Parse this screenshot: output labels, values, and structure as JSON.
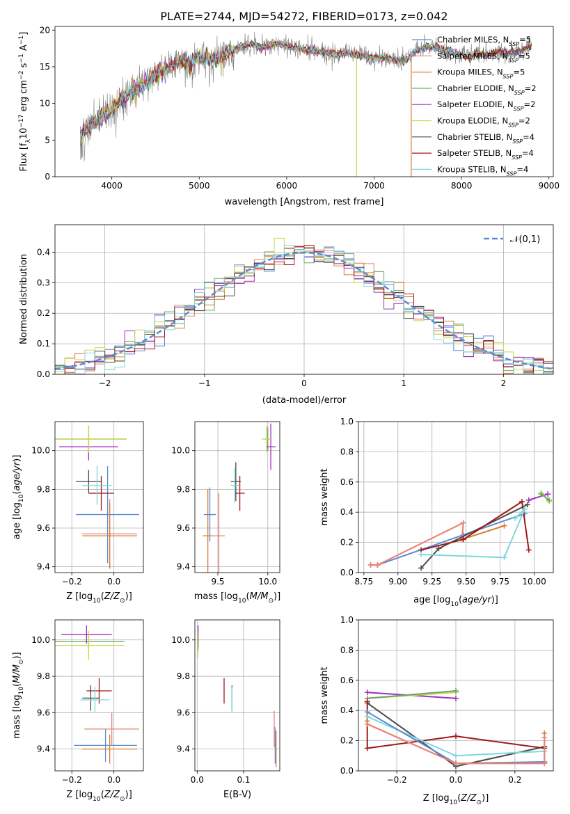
{
  "figure_title": "PLATE=2744, MJD=54272, FIBERID=0173, z=0.042",
  "colors": {
    "Chabrier MILES": "#5b8bd6",
    "Salpeter MILES": "#e8837a",
    "Kroupa MILES": "#d97b30",
    "Chabrier ELODIE": "#6aa36a",
    "Salpeter ELODIE": "#a02fc2",
    "Kroupa ELODIE": "#c8d94a",
    "Chabrier STELIB": "#4a4a4a",
    "Salpeter STELIB": "#a01818",
    "Kroupa STELIB": "#7fd7dc"
  },
  "chart_data": [
    {
      "id": "spectrum",
      "type": "line",
      "title": "PLATE=2744, MJD=54272, FIBERID=0173, z=0.042",
      "xlabel": "wavelength [Angstrom, rest frame]",
      "ylabel": "Flux [f_λ 10^-17 erg cm^-2 s^-1 A^-1]",
      "xlim": [
        3350,
        9050
      ],
      "ylim": [
        0,
        20.5
      ],
      "xticks": [
        4000,
        5000,
        6000,
        7000,
        8000,
        9000
      ],
      "yticks": [
        0,
        5,
        10,
        15,
        20
      ],
      "grid": false,
      "legend_position": "right",
      "data_envelope": {
        "x": [
          3640,
          3700,
          3800,
          3900,
          4000,
          4100,
          4200,
          4300,
          4400,
          4500,
          4600,
          4700,
          4800,
          4900,
          5000,
          5100,
          5200,
          5300,
          5400,
          5500,
          5600,
          5700,
          5800,
          5900,
          6000,
          6100,
          6200,
          6300,
          6400,
          6500,
          6600,
          6700,
          6800,
          6900,
          7000,
          7100,
          7200,
          7300,
          7400,
          7500,
          7600,
          7700,
          7800,
          7900,
          8000,
          8100,
          8200,
          8300,
          8400,
          8500,
          8600,
          8700,
          8800
        ],
        "y": [
          5.5,
          6.5,
          7.5,
          8.2,
          9.2,
          10.3,
          11.4,
          12.2,
          12.8,
          13.6,
          14.5,
          15.2,
          15.8,
          15.5,
          16.3,
          16.2,
          16.0,
          16.8,
          17.2,
          17.8,
          18.1,
          17.6,
          17.9,
          18.2,
          17.8,
          17.6,
          17.3,
          17.2,
          17.0,
          16.8,
          16.8,
          16.9,
          16.6,
          16.3,
          16.2,
          16.3,
          16.0,
          15.8,
          16.3,
          17.4,
          17.6,
          17.7,
          17.2,
          17.0,
          16.6,
          16.3,
          16.8,
          16.6,
          17.1,
          16.8,
          17.0,
          17.3,
          18.0
        ]
      },
      "series": [
        {
          "name": "Chabrier MILES, N_SSP=5",
          "n_ssp": "5"
        },
        {
          "name": "Salpeter MILES, N_SSP=5",
          "n_ssp": "5"
        },
        {
          "name": "Kroupa MILES, N_SSP=5",
          "n_ssp": "5"
        },
        {
          "name": "Chabrier ELODIE, N_SSP=2",
          "n_ssp": "2"
        },
        {
          "name": "Salpeter ELODIE, N_SSP=2",
          "n_ssp": "2"
        },
        {
          "name": "Kroupa ELODIE, N_SSP=2",
          "n_ssp": "2"
        },
        {
          "name": "Chabrier STELIB, N_SSP=4",
          "n_ssp": "4"
        },
        {
          "name": "Salpeter STELIB, N_SSP=4",
          "n_ssp": "4"
        },
        {
          "name": "Kroupa STELIB, N_SSP=4",
          "n_ssp": "4"
        }
      ]
    },
    {
      "id": "residuals",
      "type": "line",
      "xlabel": "(data-model)/error",
      "ylabel": "Normed distribution",
      "xlim": [
        -2.5,
        2.5
      ],
      "ylim": [
        0,
        0.49
      ],
      "xticks": [
        -2,
        -1,
        0,
        1,
        2
      ],
      "yticks": [
        0.0,
        0.1,
        0.2,
        0.3,
        0.4
      ],
      "grid": true,
      "legend_position": "top-right",
      "legend_label": "𝒩(0,1)",
      "bin_width": 0.1,
      "bin_start": -2.5
    },
    {
      "id": "z_age",
      "type": "scatter",
      "xlabel": "Z [log10(Z/Z☉)]",
      "ylabel": "age [log10(age/yr)]",
      "xlim": [
        -0.28,
        0.14
      ],
      "ylim": [
        9.37,
        10.15
      ],
      "xticks": [
        -0.2,
        0.0
      ],
      "yticks": [
        9.4,
        9.6,
        9.8,
        10.0
      ],
      "grid": true,
      "points": [
        {
          "model": "Chabrier MILES",
          "x": -0.03,
          "y": 9.67,
          "xerr": 0.15,
          "yerr": 0.25
        },
        {
          "model": "Salpeter MILES",
          "x": -0.02,
          "y": 9.57,
          "xerr": 0.13,
          "yerr": 0.18
        },
        {
          "model": "Kroupa MILES",
          "x": -0.02,
          "y": 9.56,
          "xerr": 0.13,
          "yerr": 0.17
        },
        {
          "model": "Chabrier ELODIE",
          "x": -0.12,
          "y": 10.06,
          "xerr": 0.18,
          "yerr": 0.07
        },
        {
          "model": "Salpeter ELODIE",
          "x": -0.12,
          "y": 10.02,
          "xerr": 0.14,
          "yerr": 0.07
        },
        {
          "model": "Kroupa ELODIE",
          "x": -0.12,
          "y": 10.06,
          "xerr": 0.18,
          "yerr": 0.07
        },
        {
          "model": "Chabrier STELIB",
          "x": -0.12,
          "y": 9.84,
          "xerr": 0.06,
          "yerr": 0.06
        },
        {
          "model": "Salpeter STELIB",
          "x": -0.06,
          "y": 9.78,
          "xerr": 0.06,
          "yerr": 0.09
        },
        {
          "model": "Kroupa STELIB",
          "x": -0.08,
          "y": 9.82,
          "xerr": 0.07,
          "yerr": 0.1
        }
      ]
    },
    {
      "id": "mass_age",
      "type": "scatter",
      "xlabel": "mass [log10(M/M☉)]",
      "ylabel": "",
      "xlim": [
        9.27,
        10.12
      ],
      "ylim": [
        9.37,
        10.15
      ],
      "xticks": [
        9.5,
        10.0
      ],
      "yticks": [
        9.4,
        9.6,
        9.8,
        10.0
      ],
      "grid": true,
      "points": [
        {
          "model": "Chabrier MILES",
          "x": 9.42,
          "y": 9.67,
          "xerr": 0.06,
          "yerr": 0.14
        },
        {
          "model": "Salpeter MILES",
          "x": 9.51,
          "y": 9.56,
          "xerr": 0.06,
          "yerr": 0.22
        },
        {
          "model": "Kroupa MILES",
          "x": 9.4,
          "y": 9.56,
          "xerr": 0.05,
          "yerr": 0.24
        },
        {
          "model": "Chabrier ELODIE",
          "x": 10.0,
          "y": 10.06,
          "xerr": 0.04,
          "yerr": 0.06
        },
        {
          "model": "Salpeter ELODIE",
          "x": 10.03,
          "y": 10.02,
          "xerr": 0.05,
          "yerr": 0.12
        },
        {
          "model": "Kroupa ELODIE",
          "x": 9.99,
          "y": 10.06,
          "xerr": 0.05,
          "yerr": 0.07
        },
        {
          "model": "Chabrier STELIB",
          "x": 9.68,
          "y": 9.84,
          "xerr": 0.05,
          "yerr": 0.1
        },
        {
          "model": "Salpeter STELIB",
          "x": 9.72,
          "y": 9.78,
          "xerr": 0.05,
          "yerr": 0.09
        },
        {
          "model": "Kroupa STELIB",
          "x": 9.67,
          "y": 9.82,
          "xerr": 0.04,
          "yerr": 0.09
        }
      ]
    },
    {
      "id": "age_weight",
      "type": "line",
      "xlabel": "age [log10(age/yr)]",
      "ylabel": "mass weight",
      "xlim": [
        8.71,
        10.14
      ],
      "ylim": [
        0,
        1.0
      ],
      "xticks": [
        8.75,
        9.0,
        9.25,
        9.5,
        9.75,
        10.0
      ],
      "yticks": [
        0.0,
        0.2,
        0.4,
        0.6,
        0.8,
        1.0
      ],
      "grid": true,
      "series": [
        {
          "model": "Chabrier MILES",
          "x": [
            8.8,
            8.85,
            9.48,
            9.93
          ],
          "y": [
            0.05,
            0.05,
            0.25,
            0.39
          ]
        },
        {
          "model": "Kroupa MILES",
          "x": [
            8.8,
            8.85,
            9.48,
            9.47,
            9.78
          ],
          "y": [
            0.05,
            0.05,
            0.33,
            0.22,
            0.31
          ]
        },
        {
          "model": "Salpeter MILES",
          "x": [
            8.8,
            8.85,
            9.48,
            9.47
          ],
          "y": [
            0.05,
            0.05,
            0.33,
            0.22
          ]
        },
        {
          "model": "Chabrier STELIB",
          "x": [
            9.17,
            9.3,
            9.95
          ],
          "y": [
            0.03,
            0.16,
            0.45
          ]
        },
        {
          "model": "Salpeter STELIB",
          "x": [
            9.17,
            9.48,
            9.91,
            9.96
          ],
          "y": [
            0.15,
            0.22,
            0.47,
            0.15
          ]
        },
        {
          "model": "Kroupa STELIB",
          "x": [
            9.17,
            9.78,
            9.93,
            9.86
          ],
          "y": [
            0.12,
            0.1,
            0.42,
            0.36
          ]
        },
        {
          "model": "Salpeter ELODIE",
          "x": [
            9.96,
            10.1
          ],
          "y": [
            0.48,
            0.52
          ]
        },
        {
          "model": "Kroupa ELODIE",
          "x": [
            10.05,
            10.11
          ],
          "y": [
            0.53,
            0.47
          ]
        },
        {
          "model": "Chabrier ELODIE",
          "x": [
            10.05,
            10.11
          ],
          "y": [
            0.52,
            0.48
          ]
        }
      ]
    },
    {
      "id": "z_mass",
      "type": "scatter",
      "xlabel": "Z [log10(Z/Z☉)]",
      "ylabel": "mass [log10(M/M☉)]",
      "xlim": [
        -0.28,
        0.14
      ],
      "ylim": [
        9.28,
        10.11
      ],
      "xticks": [
        -0.2,
        0.0
      ],
      "yticks": [
        9.4,
        9.6,
        9.8,
        10.0
      ],
      "grid": true,
      "points": [
        {
          "model": "Chabrier MILES",
          "x": -0.04,
          "y": 9.42,
          "xerr": 0.15,
          "yerr": 0.09
        },
        {
          "model": "Salpeter MILES",
          "x": -0.01,
          "y": 9.51,
          "xerr": 0.13,
          "yerr": 0.09
        },
        {
          "model": "Kroupa MILES",
          "x": -0.02,
          "y": 9.4,
          "xerr": 0.13,
          "yerr": 0.08
        },
        {
          "model": "Chabrier ELODIE",
          "x": -0.12,
          "y": 9.99,
          "xerr": 0.17,
          "yerr": 0.05
        },
        {
          "model": "Salpeter ELODIE",
          "x": -0.13,
          "y": 10.03,
          "xerr": 0.12,
          "yerr": 0.05
        },
        {
          "model": "Kroupa ELODIE",
          "x": -0.12,
          "y": 9.97,
          "xerr": 0.17,
          "yerr": 0.08
        },
        {
          "model": "Chabrier STELIB",
          "x": -0.11,
          "y": 9.68,
          "xerr": 0.04,
          "yerr": 0.07
        },
        {
          "model": "Salpeter STELIB",
          "x": -0.07,
          "y": 9.72,
          "xerr": 0.06,
          "yerr": 0.07
        },
        {
          "model": "Kroupa STELIB",
          "x": -0.09,
          "y": 9.67,
          "xerr": 0.07,
          "yerr": 0.07
        }
      ]
    },
    {
      "id": "ebv_mass",
      "type": "scatter",
      "xlabel": "E(B-V)",
      "ylabel": "",
      "xlim": [
        -0.005,
        0.178
      ],
      "ylim": [
        9.28,
        10.11
      ],
      "xticks": [
        0.0,
        0.1
      ],
      "yticks": [
        9.4,
        9.6,
        9.8,
        10.0
      ],
      "grid": true,
      "points": [
        {
          "model": "Chabrier MILES",
          "x": 0.168,
          "y": 9.42,
          "xerr": 0.0,
          "yerr": 0.1
        },
        {
          "model": "Salpeter MILES",
          "x": 0.166,
          "y": 9.51,
          "xerr": 0.0,
          "yerr": 0.1
        },
        {
          "model": "Kroupa MILES",
          "x": 0.17,
          "y": 9.4,
          "xerr": 0.0,
          "yerr": 0.1
        },
        {
          "model": "Chabrier ELODIE",
          "x": 0.002,
          "y": 9.99,
          "xerr": 0.0,
          "yerr": 0.05
        },
        {
          "model": "Salpeter ELODIE",
          "x": 0.002,
          "y": 10.02,
          "xerr": 0.0,
          "yerr": 0.06
        },
        {
          "model": "Kroupa ELODIE",
          "x": 0.001,
          "y": 9.97,
          "xerr": 0.0,
          "yerr": 0.07
        },
        {
          "model": "Chabrier STELIB",
          "x": 0.075,
          "y": 9.68,
          "xerr": 0.0,
          "yerr": 0.07
        },
        {
          "model": "Salpeter STELIB",
          "x": 0.058,
          "y": 9.72,
          "xerr": 0.0,
          "yerr": 0.07
        },
        {
          "model": "Kroupa STELIB",
          "x": 0.075,
          "y": 9.67,
          "xerr": 0.0,
          "yerr": 0.07
        }
      ]
    },
    {
      "id": "z_weight",
      "type": "line",
      "xlabel": "Z [log10(Z/Z☉)]",
      "ylabel": "mass weight",
      "xlim": [
        -0.33,
        0.33
      ],
      "ylim": [
        0,
        1.0
      ],
      "xticks": [
        -0.2,
        0.0,
        0.2
      ],
      "yticks": [
        0.0,
        0.2,
        0.4,
        0.6,
        0.8,
        1.0
      ],
      "grid": true,
      "series": [
        {
          "model": "Salpeter ELODIE",
          "x": [
            -0.3,
            0.0
          ],
          "y": [
            0.52,
            0.48
          ]
        },
        {
          "model": "Kroupa ELODIE",
          "x": [
            -0.3,
            0.0
          ],
          "y": [
            0.48,
            0.52
          ]
        },
        {
          "model": "Chabrier ELODIE",
          "x": [
            -0.3,
            0.0
          ],
          "y": [
            0.48,
            0.53
          ]
        },
        {
          "model": "Chabrier STELIB",
          "x": [
            -0.3,
            0.0,
            0.3
          ],
          "y": [
            0.45,
            0.03,
            0.16
          ]
        },
        {
          "model": "Salpeter STELIB",
          "x": [
            -0.3,
            -0.3,
            0.0,
            0.3
          ],
          "y": [
            0.46,
            0.15,
            0.23,
            0.15
          ]
        },
        {
          "model": "Kroupa STELIB",
          "x": [
            -0.3,
            0.0,
            0.3
          ],
          "y": [
            0.36,
            0.1,
            0.13
          ]
        },
        {
          "model": "Chabrier MILES",
          "x": [
            -0.3,
            0.0,
            0.3
          ],
          "y": [
            0.39,
            0.05,
            0.06
          ]
        },
        {
          "model": "Kroupa MILES",
          "x": [
            -0.3,
            -0.3,
            0.0,
            0.3,
            0.3
          ],
          "y": [
            0.33,
            0.31,
            0.05,
            0.05,
            0.25
          ]
        },
        {
          "model": "Salpeter MILES",
          "x": [
            -0.3,
            0.0,
            0.3,
            0.3
          ],
          "y": [
            0.31,
            0.05,
            0.05,
            0.22
          ]
        }
      ]
    }
  ]
}
